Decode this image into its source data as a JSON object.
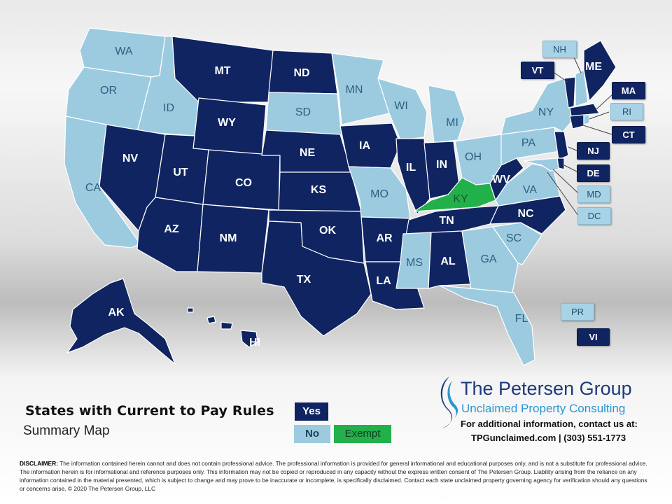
{
  "legend": {
    "title": "States with Current to Pay Rules",
    "subtitle": "Summary Map",
    "yes_label": "Yes",
    "no_label": "No",
    "exempt_label": "Exempt"
  },
  "colors": {
    "yes": "#0f2460",
    "no": "#9ccbe0",
    "exempt": "#22b04b"
  },
  "states": [
    {
      "code": "WA",
      "status": "no"
    },
    {
      "code": "OR",
      "status": "no"
    },
    {
      "code": "CA",
      "status": "no"
    },
    {
      "code": "ID",
      "status": "no"
    },
    {
      "code": "NV",
      "status": "yes"
    },
    {
      "code": "MT",
      "status": "yes"
    },
    {
      "code": "WY",
      "status": "yes"
    },
    {
      "code": "UT",
      "status": "yes"
    },
    {
      "code": "AZ",
      "status": "yes"
    },
    {
      "code": "CO",
      "status": "yes"
    },
    {
      "code": "NM",
      "status": "yes"
    },
    {
      "code": "ND",
      "status": "yes"
    },
    {
      "code": "SD",
      "status": "no"
    },
    {
      "code": "NE",
      "status": "yes"
    },
    {
      "code": "KS",
      "status": "yes"
    },
    {
      "code": "OK",
      "status": "yes"
    },
    {
      "code": "TX",
      "status": "yes"
    },
    {
      "code": "MN",
      "status": "no"
    },
    {
      "code": "IA",
      "status": "yes"
    },
    {
      "code": "MO",
      "status": "no"
    },
    {
      "code": "AR",
      "status": "yes"
    },
    {
      "code": "LA",
      "status": "yes"
    },
    {
      "code": "WI",
      "status": "no"
    },
    {
      "code": "IL",
      "status": "yes"
    },
    {
      "code": "MI",
      "status": "no"
    },
    {
      "code": "IN",
      "status": "yes"
    },
    {
      "code": "OH",
      "status": "no"
    },
    {
      "code": "KY",
      "status": "exempt"
    },
    {
      "code": "TN",
      "status": "yes"
    },
    {
      "code": "MS",
      "status": "no"
    },
    {
      "code": "AL",
      "status": "yes"
    },
    {
      "code": "GA",
      "status": "no"
    },
    {
      "code": "FL",
      "status": "no"
    },
    {
      "code": "SC",
      "status": "no"
    },
    {
      "code": "NC",
      "status": "yes"
    },
    {
      "code": "VA",
      "status": "no"
    },
    {
      "code": "WV",
      "status": "yes"
    },
    {
      "code": "PA",
      "status": "no"
    },
    {
      "code": "NY",
      "status": "no"
    },
    {
      "code": "ME",
      "status": "yes"
    },
    {
      "code": "AK",
      "status": "yes"
    },
    {
      "code": "HI",
      "status": "yes"
    }
  ],
  "callouts": [
    {
      "code": "NH",
      "status": "no"
    },
    {
      "code": "VT",
      "status": "yes"
    },
    {
      "code": "MA",
      "status": "yes"
    },
    {
      "code": "RI",
      "status": "no"
    },
    {
      "code": "CT",
      "status": "yes"
    },
    {
      "code": "NJ",
      "status": "yes"
    },
    {
      "code": "DE",
      "status": "yes"
    },
    {
      "code": "MD",
      "status": "no"
    },
    {
      "code": "DC",
      "status": "no"
    },
    {
      "code": "PR",
      "status": "no"
    },
    {
      "code": "VI",
      "status": "yes"
    }
  ],
  "company": {
    "name": "The Petersen Group",
    "tagline": "Unclaimed Property Consulting",
    "contact_line": "For additional information, contact us at:",
    "contact_details": "TPGunclaimed.com | (303) 551-1773"
  },
  "disclaimer": {
    "label": "DISCLAIMER:",
    "text": " The information contained herein cannot and does not contain professional advice. The professional information is provided for general informational and educational purposes only, and is not a substitute for professional advice. The information herein is for informational and reference purposes only. This information may not be copied or reproduced in any capacity without the express written consent of The Petersen Group. Liability arising from the reliance on any information contained in the material presented, which is subject to change and may prove to be inaccurate or incomplete, is specifically disclaimed. Contact each state unclaimed property governing agency for verification should any questions or concerns arise. © 2020 The Petersen Group, LLC"
  }
}
